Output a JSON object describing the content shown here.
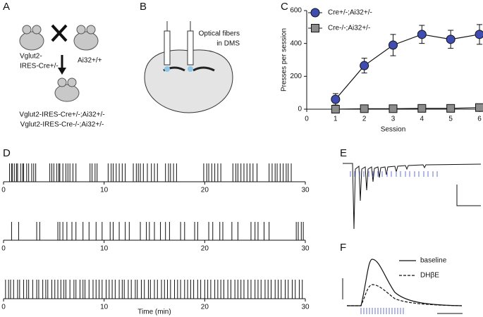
{
  "panel_labels": [
    "A",
    "B",
    "C",
    "D",
    "E",
    "F"
  ],
  "panel_a": {
    "parent_1": [
      "Vglut2-",
      "IRES-Cre+/-"
    ],
    "parent_2": "Ai32+/+",
    "offspring": [
      "Vglut2-IRES-Cre+/-;Ai32+/-",
      "Vglut2-IRES-Cre-/-;Ai32+/-"
    ]
  },
  "panel_b": {
    "label": [
      "Optical fibers",
      "in DMS"
    ]
  },
  "panel_f": {
    "legend": [
      "baseline",
      "DHβE"
    ]
  },
  "chart_data": [
    {
      "type": "line",
      "x_label": "Session",
      "y_label": "Presses per session",
      "x": [
        1,
        2,
        3,
        4,
        5,
        6
      ],
      "xlim": [
        0,
        6
      ],
      "xticks": [
        0,
        1,
        2,
        3,
        4,
        5,
        6
      ],
      "ylim": [
        0,
        600
      ],
      "yticks": [
        0,
        200,
        400,
        600
      ],
      "legend": "upper left",
      "series": [
        {
          "name": "Cre+/-;Ai32+/-",
          "color": "#3f4db3",
          "marker": "circle",
          "values": [
            60,
            265,
            390,
            455,
            425,
            455
          ],
          "errors": [
            35,
            45,
            65,
            55,
            55,
            60
          ]
        },
        {
          "name": "Cre-/-;Ai32+/-",
          "color": "#8c8c8c",
          "marker": "square",
          "values": [
            0,
            3,
            3,
            5,
            5,
            10
          ],
          "errors": [
            3,
            3,
            3,
            3,
            3,
            8
          ]
        }
      ]
    },
    {
      "type": "raster",
      "xlim": [
        0,
        30
      ],
      "xticks": [
        0,
        10,
        20,
        30
      ],
      "events": [
        0.6,
        0.8,
        0.9,
        1.1,
        1.3,
        1.4,
        1.7,
        1.9,
        2.0,
        2.3,
        2.5,
        2.8,
        3.0,
        3.2,
        4.6,
        4.8,
        5.0,
        5.3,
        5.5,
        5.6,
        5.9,
        6.2,
        6.4,
        6.6,
        6.9,
        7.2,
        8.6,
        8.8,
        9.1,
        9.3,
        10.4,
        10.7,
        10.9,
        11.2,
        11.5,
        11.8,
        12.1,
        12.9,
        13.2,
        13.4,
        13.6,
        13.9,
        14.3,
        14.7,
        15.0,
        15.3,
        16.1,
        16.4,
        16.6,
        16.9,
        17.2,
        19.9,
        20.2,
        20.4,
        20.7,
        21.0,
        21.3,
        21.6,
        22.8,
        23.1,
        23.3,
        23.6,
        23.9,
        24.2,
        24.5,
        24.8,
        25.2,
        26.4,
        26.7,
        27.0,
        27.2,
        27.5,
        27.8,
        28.1,
        28.3,
        28.6
      ]
    },
    {
      "type": "raster",
      "xlim": [
        0,
        30
      ],
      "xticks": [
        0,
        10,
        20,
        30
      ],
      "events": [
        0.8,
        1.5,
        3.3,
        3.6,
        5.4,
        5.6,
        5.9,
        6.3,
        6.8,
        7.2,
        7.9,
        8.5,
        9.2,
        9.8,
        10.6,
        10.9,
        11.5,
        12.1,
        12.5,
        13.6,
        14.2,
        14.5,
        15.0,
        15.6,
        16.1,
        16.5,
        17.6,
        18.0,
        19.0,
        19.3,
        20.4,
        20.8,
        21.5,
        21.8,
        22.7,
        23.3,
        24.6,
        25.0,
        25.3,
        25.9,
        26.4,
        29.1,
        29.3,
        29.6,
        29.8
      ]
    },
    {
      "type": "raster",
      "xlim": [
        0,
        30
      ],
      "xticks": [
        0,
        10,
        20,
        30
      ],
      "x_label": "Time (min)",
      "events": [
        0.2,
        0.5,
        0.7,
        1.0,
        1.4,
        1.6,
        2.0,
        2.3,
        2.5,
        2.9,
        3.3,
        3.5,
        3.9,
        4.2,
        4.4,
        4.8,
        5.1,
        5.4,
        5.7,
        6.0,
        6.2,
        6.6,
        7.0,
        7.2,
        7.6,
        7.9,
        8.1,
        8.5,
        8.9,
        9.2,
        9.5,
        9.8,
        10.2,
        10.5,
        10.8,
        11.1,
        11.5,
        11.8,
        12.0,
        12.4,
        12.7,
        13.1,
        13.3,
        13.7,
        14.0,
        14.4,
        14.6,
        15.0,
        15.3,
        15.7,
        16.0,
        16.3,
        16.6,
        17.0,
        17.3,
        17.6,
        18.0,
        18.3,
        18.6,
        18.9,
        19.3,
        19.6,
        20.0,
        20.3,
        20.6,
        21.0,
        21.3,
        21.6,
        21.9,
        22.3,
        22.6,
        23.0,
        23.3,
        23.6,
        23.9,
        24.3,
        24.6,
        25.0,
        25.3,
        25.6,
        26.0,
        26.3,
        26.6,
        27.0,
        27.3,
        27.6,
        28.0,
        28.3,
        28.7,
        29.0,
        29.4,
        29.7
      ]
    }
  ]
}
